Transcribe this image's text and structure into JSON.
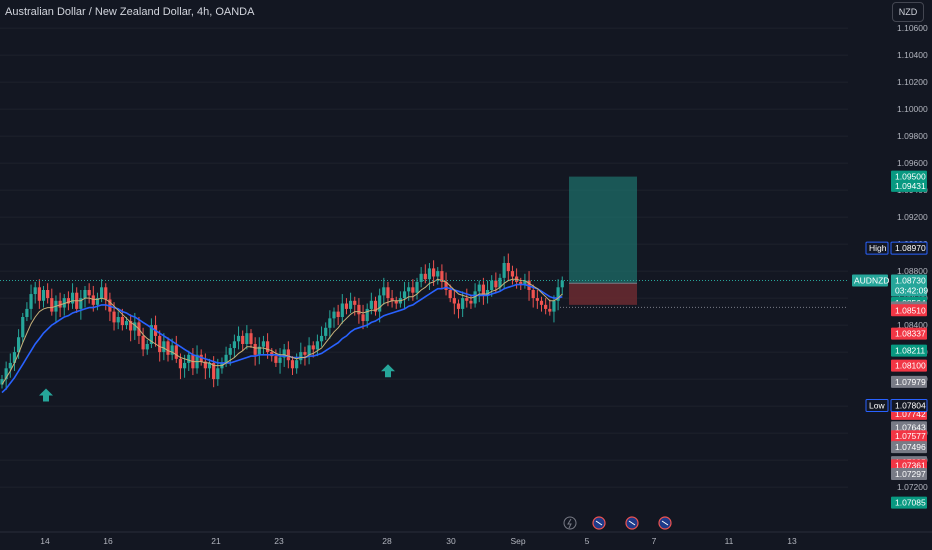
{
  "header": {
    "title": "Australian Dollar / New Zealand Dollar, 4h, OANDA",
    "currency_button": "NZD"
  },
  "colors": {
    "background": "#131722",
    "up": "#26a69a",
    "down": "#ef5350",
    "ma_fast": "#c8b27a",
    "ma_slow": "#2962ff",
    "profit_zone": "#1e6e68",
    "loss_zone": "#6b2a30",
    "arrow": "#26a69a"
  },
  "chart_data": {
    "type": "candlestick",
    "symbol": "AUDNZD",
    "y_ticks": [
      "1.10600",
      "1.10400",
      "1.10200",
      "1.10000",
      "1.09800",
      "1.09600",
      "1.09400",
      "1.09200",
      "1.09000",
      "1.08800",
      "1.08600",
      "1.08400",
      "1.08200",
      "1.08000",
      "1.07800",
      "1.07600",
      "1.07400",
      "1.07200"
    ],
    "x_ticks": [
      "14",
      "16",
      "21",
      "23",
      "28",
      "30",
      "Sep",
      "5",
      "7",
      "11",
      "13"
    ],
    "ylim": [
      1.0706,
      1.1066
    ],
    "current_price": "1.08730",
    "countdown": "03:42:09",
    "high": {
      "label": "High",
      "value": "1.08970"
    },
    "low": {
      "label": "Low",
      "value": "1.07804"
    },
    "price_tags": [
      {
        "value": "1.09500",
        "color": "#089981"
      },
      {
        "value": "1.09431",
        "color": "#089981"
      },
      {
        "value": "1.08675",
        "color": "#787b86"
      },
      {
        "value": "1.08564",
        "color": "#089981"
      },
      {
        "value": "1.08531",
        "color": "#787b86"
      },
      {
        "value": "1.08510",
        "color": "#f23645"
      },
      {
        "value": "1.08337",
        "color": "#f23645"
      },
      {
        "value": "1.08211",
        "color": "#089981"
      },
      {
        "value": "1.08100",
        "color": "#f23645"
      },
      {
        "value": "1.07979",
        "color": "#787b86"
      },
      {
        "value": "1.07742",
        "color": "#f23645"
      },
      {
        "value": "1.07643",
        "color": "#787b86"
      },
      {
        "value": "1.07577",
        "color": "#f23645"
      },
      {
        "value": "1.07496",
        "color": "#787b86"
      },
      {
        "value": "1.07385",
        "color": "#787b86"
      },
      {
        "value": "1.07361",
        "color": "#f23645"
      },
      {
        "value": "1.07297",
        "color": "#787b86"
      },
      {
        "value": "1.07085",
        "color": "#089981"
      }
    ],
    "position": {
      "entry": 1.0871,
      "target": 1.095,
      "stop": 1.0855
    },
    "candles_close": [
      1.08,
      1.0808,
      1.0812,
      1.082,
      1.0831,
      1.0846,
      1.0852,
      1.0863,
      1.0868,
      1.0858,
      1.0866,
      1.086,
      1.085,
      1.0858,
      1.0853,
      1.086,
      1.0856,
      1.0864,
      1.0852,
      1.086,
      1.0866,
      1.0862,
      1.0855,
      1.086,
      1.0868,
      1.0859,
      1.085,
      1.0842,
      1.0846,
      1.084,
      1.0843,
      1.0836,
      1.0842,
      1.0832,
      1.0822,
      1.0826,
      1.084,
      1.0832,
      1.082,
      1.0828,
      1.0818,
      1.0825,
      1.0815,
      1.0808,
      1.0812,
      1.0818,
      1.0808,
      1.0818,
      1.0813,
      1.0808,
      1.0812,
      1.08,
      1.0808,
      1.0812,
      1.0818,
      1.0823,
      1.0828,
      1.0832,
      1.0826,
      1.0834,
      1.0826,
      1.0818,
      1.0824,
      1.0828,
      1.082,
      1.0817,
      1.0812,
      1.0816,
      1.0822,
      1.0814,
      1.0808,
      1.0814,
      1.082,
      1.0818,
      1.0825,
      1.0822,
      1.0828,
      1.0832,
      1.0838,
      1.0845,
      1.085,
      1.0846,
      1.0856,
      1.0852,
      1.0858,
      1.0855,
      1.0848,
      1.0843,
      1.0852,
      1.0858,
      1.085,
      1.0862,
      1.0868,
      1.086,
      1.0858,
      1.0856,
      1.086,
      1.0865,
      1.0868,
      1.0864,
      1.0872,
      1.0878,
      1.0874,
      1.0882,
      1.0876,
      1.088,
      1.0872,
      1.0866,
      1.086,
      1.0856,
      1.0852,
      1.086,
      1.0858,
      1.0856,
      1.0865,
      1.087,
      1.0862,
      1.0866,
      1.0873,
      1.0868,
      1.0875,
      1.0886,
      1.088,
      1.0876,
      1.0872,
      1.087,
      1.0873,
      1.0866,
      1.086,
      1.0858,
      1.0855,
      1.0852,
      1.085,
      1.0858,
      1.0868,
      1.0873
    ],
    "ma_fast": [
      1.0796,
      1.0801,
      1.0806,
      1.0812,
      1.0819,
      1.0827,
      1.0834,
      1.0841,
      1.0846,
      1.085,
      1.0852,
      1.0853,
      1.0853,
      1.0854,
      1.0855,
      1.0856,
      1.0857,
      1.0858,
      1.0858,
      1.0858,
      1.086,
      1.086,
      1.0859,
      1.0859,
      1.086,
      1.0859,
      1.0857,
      1.0854,
      1.0851,
      1.0848,
      1.0845,
      1.0842,
      1.084,
      1.0837,
      1.0833,
      1.083,
      1.0828,
      1.0826,
      1.0824,
      1.0823,
      1.0821,
      1.082,
      1.0818,
      1.0816,
      1.0815,
      1.0814,
      1.0813,
      1.0813,
      1.0813,
      1.0812,
      1.0812,
      1.081,
      1.081,
      1.081,
      1.0812,
      1.0814,
      1.0816,
      1.0819,
      1.0821,
      1.0824,
      1.0824,
      1.0823,
      1.0823,
      1.0823,
      1.0822,
      1.0821,
      1.0819,
      1.0818,
      1.0818,
      1.0817,
      1.0816,
      1.0815,
      1.0816,
      1.0816,
      1.0818,
      1.0819,
      1.0821,
      1.0823,
      1.0827,
      1.0831,
      1.0835,
      1.0838,
      1.0842,
      1.0845,
      1.0848,
      1.085,
      1.085,
      1.0849,
      1.085,
      1.0851,
      1.0851,
      1.0853,
      1.0856,
      1.0857,
      1.0858,
      1.0858,
      1.0858,
      1.0859,
      1.0861,
      1.0861,
      1.0863,
      1.0866,
      1.0868,
      1.0871,
      1.0872,
      1.0874,
      1.0873,
      1.0872,
      1.0869,
      1.0866,
      1.0863,
      1.0862,
      1.0861,
      1.086,
      1.0861,
      1.0863,
      1.0863,
      1.0863,
      1.0865,
      1.0866,
      1.0868,
      1.0871,
      1.0873,
      1.0874,
      1.0874,
      1.0873,
      1.0873,
      1.0871,
      1.0869,
      1.0867,
      1.0864,
      1.0861,
      1.0858,
      1.0858,
      1.086,
      1.0863
    ],
    "ma_slow": [
      1.079,
      1.0793,
      1.0797,
      1.0801,
      1.0806,
      1.0811,
      1.0816,
      1.0821,
      1.0826,
      1.083,
      1.0834,
      1.0837,
      1.084,
      1.0842,
      1.0844,
      1.0846,
      1.0847,
      1.0849,
      1.085,
      1.0851,
      1.0852,
      1.0853,
      1.0853,
      1.0854,
      1.0855,
      1.0855,
      1.0854,
      1.0853,
      1.0852,
      1.085,
      1.0849,
      1.0847,
      1.0846,
      1.0844,
      1.0842,
      1.084,
      1.0838,
      1.0836,
      1.0834,
      1.0832,
      1.083,
      1.0828,
      1.0826,
      1.0824,
      1.0822,
      1.082,
      1.0818,
      1.0817,
      1.0816,
      1.0815,
      1.0814,
      1.0813,
      1.0812,
      1.0812,
      1.0812,
      1.0812,
      1.0813,
      1.0814,
      1.0815,
      1.0816,
      1.0817,
      1.0817,
      1.0818,
      1.0818,
      1.0818,
      1.0818,
      1.0818,
      1.0817,
      1.0817,
      1.0817,
      1.0816,
      1.0816,
      1.0816,
      1.0816,
      1.0817,
      1.0817,
      1.0818,
      1.0819,
      1.0821,
      1.0823,
      1.0825,
      1.0827,
      1.083,
      1.0832,
      1.0835,
      1.0837,
      1.0838,
      1.0839,
      1.084,
      1.0842,
      1.0843,
      1.0845,
      1.0847,
      1.0848,
      1.0849,
      1.085,
      1.0851,
      1.0852,
      1.0854,
      1.0855,
      1.0857,
      1.0859,
      1.0861,
      1.0863,
      1.0865,
      1.0867,
      1.0867,
      1.0868,
      1.0867,
      1.0866,
      1.0865,
      1.0864,
      1.0863,
      1.0862,
      1.0862,
      1.0862,
      1.0862,
      1.0862,
      1.0863,
      1.0864,
      1.0865,
      1.0867,
      1.0868,
      1.0869,
      1.087,
      1.087,
      1.087,
      1.0869,
      1.0868,
      1.0867,
      1.0865,
      1.0863,
      1.0861,
      1.086,
      1.086,
      1.0861
    ]
  }
}
